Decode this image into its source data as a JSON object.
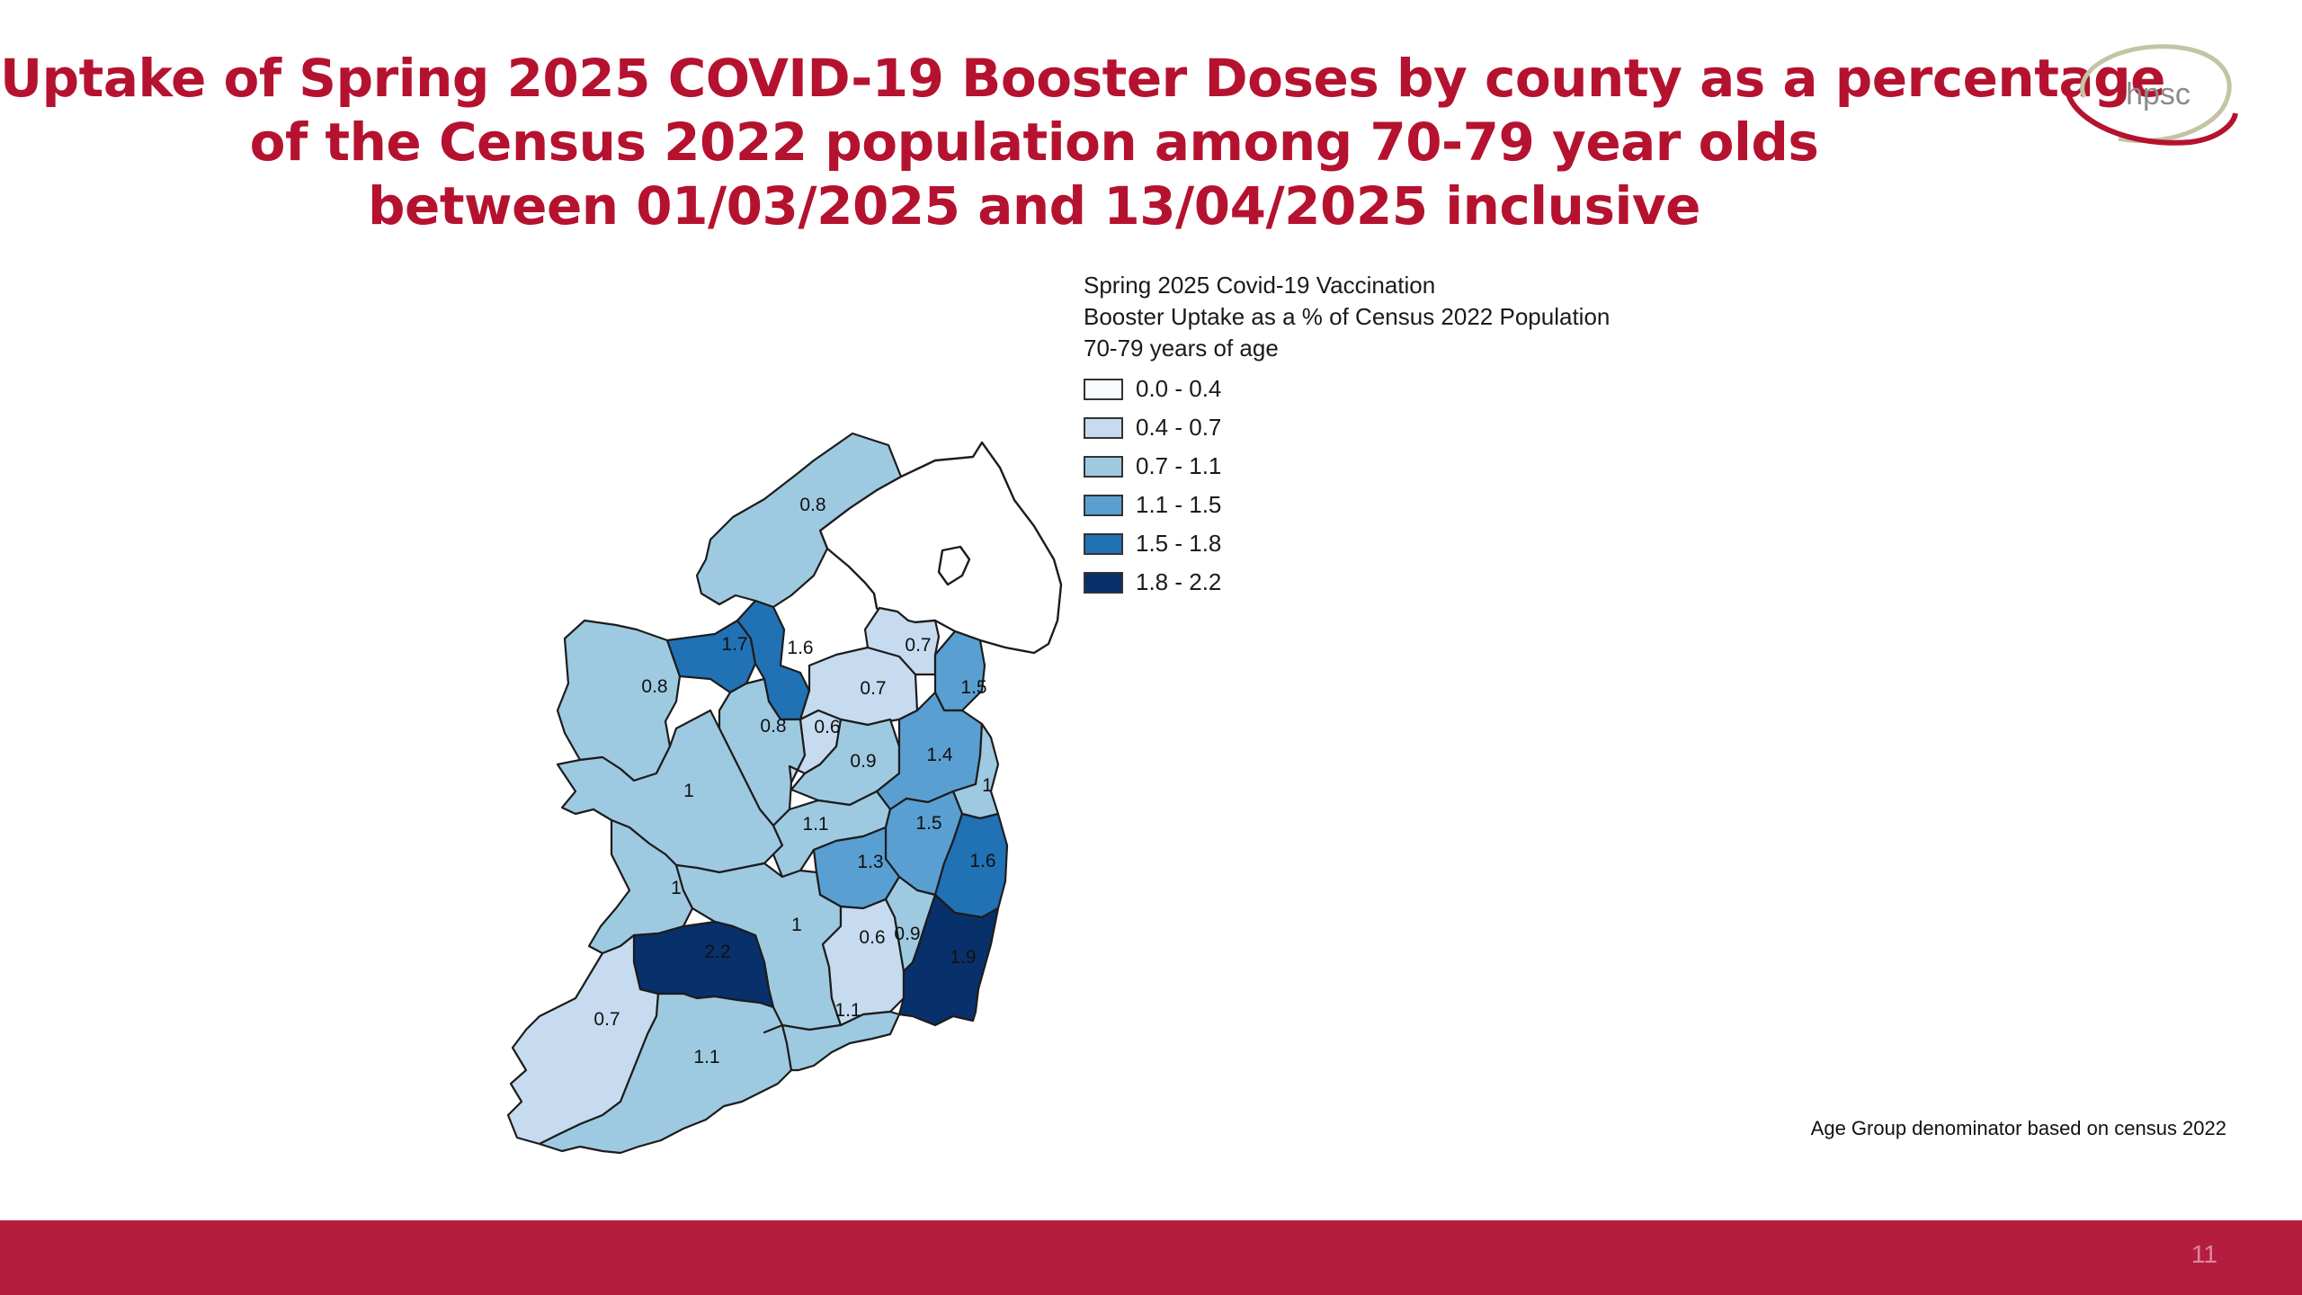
{
  "slide": {
    "title_lines": [
      "Uptake of Spring 2025 COVID-19 Booster Doses by county as a percentage",
      "of the Census 2022 population among 70-79 year olds",
      "between 01/03/2025 and 13/04/2025 inclusive"
    ],
    "logo_text": "hpsc",
    "footnote": "Age Group denominator based on census 2022",
    "page_number": "11",
    "colors": {
      "title": "#b5122f",
      "footer_bar": "#b51d3f",
      "logo_ring": "#c4c4a4",
      "logo_accent": "#b5122f"
    }
  },
  "legend": {
    "title_lines": [
      "Spring 2025 Covid-19 Vaccination",
      "Booster Uptake as a % of Census 2022 Population",
      "70-79 years of age"
    ],
    "classes": [
      {
        "range": "0.0 - 0.4",
        "color": "#f7fbff"
      },
      {
        "range": "0.4 - 0.7",
        "color": "#c6dbef"
      },
      {
        "range": "0.7 - 1.1",
        "color": "#9ecae1"
      },
      {
        "range": "1.1 - 1.5",
        "color": "#5a9fd2"
      },
      {
        "range": "1.5 - 1.8",
        "color": "#2171b5"
      },
      {
        "range": "1.8 - 2.2",
        "color": "#08306b"
      }
    ]
  },
  "map": {
    "counties": [
      {
        "id": "donegal",
        "label": "0.8",
        "value": 0.8
      },
      {
        "id": "mayo",
        "label": "0.8",
        "value": 0.8
      },
      {
        "id": "sligo",
        "label": "1.7",
        "value": 1.7
      },
      {
        "id": "leitrim",
        "label": "1.6",
        "value": 1.6
      },
      {
        "id": "cavan",
        "label": "0.7",
        "value": 0.7
      },
      {
        "id": "monaghan",
        "label": "0.7",
        "value": 0.7
      },
      {
        "id": "louth",
        "label": "1.5",
        "value": 1.5
      },
      {
        "id": "roscommon",
        "label": "0.8",
        "value": 0.8
      },
      {
        "id": "longford",
        "label": "0.6",
        "value": 0.6
      },
      {
        "id": "westmeath",
        "label": "0.9",
        "value": 0.9
      },
      {
        "id": "meath",
        "label": "1.4",
        "value": 1.4
      },
      {
        "id": "dublin",
        "label": "1",
        "value": 1.0
      },
      {
        "id": "galway",
        "label": "1",
        "value": 1.0
      },
      {
        "id": "offaly",
        "label": "1.1",
        "value": 1.1
      },
      {
        "id": "kildare",
        "label": "1.5",
        "value": 1.5
      },
      {
        "id": "laois",
        "label": "1.3",
        "value": 1.3
      },
      {
        "id": "wicklow",
        "label": "1.6",
        "value": 1.6
      },
      {
        "id": "clare",
        "label": "1",
        "value": 1.0
      },
      {
        "id": "tipperary",
        "label": "1",
        "value": 1.0
      },
      {
        "id": "kilkenny",
        "label": "0.6",
        "value": 0.6
      },
      {
        "id": "carlow",
        "label": "0.9",
        "value": 0.9
      },
      {
        "id": "wexford",
        "label": "1.9",
        "value": 1.9
      },
      {
        "id": "limerick",
        "label": "2.2",
        "value": 2.2
      },
      {
        "id": "kerry",
        "label": "0.7",
        "value": 0.7
      },
      {
        "id": "cork",
        "label": "1.1",
        "value": 1.1
      },
      {
        "id": "waterford",
        "label": "1.1",
        "value": 1.1
      }
    ]
  }
}
